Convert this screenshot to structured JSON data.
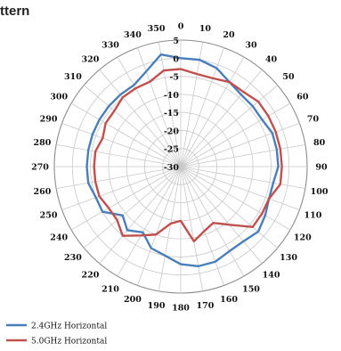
{
  "chart_data": {
    "type": "polar-line",
    "title": "ttern",
    "angle_unit": "degrees",
    "angle_ticks": [
      "0",
      "10",
      "20",
      "30",
      "40",
      "50",
      "60",
      "70",
      "80",
      "90",
      "100",
      "110",
      "120",
      "130",
      "140",
      "150",
      "160",
      "170",
      "180",
      "190",
      "200",
      "210",
      "220",
      "230",
      "240",
      "250",
      "260",
      "270",
      "280",
      "290",
      "300",
      "310",
      "320",
      "330",
      "340",
      "350"
    ],
    "radial_ticks": [
      "5",
      "0",
      "-5",
      "-10",
      "-15",
      "-20",
      "-25",
      "-30"
    ],
    "rlim": [
      -30,
      5
    ],
    "grid": true,
    "legend_position": "bottom-left",
    "series": [
      {
        "name": "2.4GHz Horizontal",
        "color": "#4a7ebb",
        "angles": [
          0,
          10,
          20,
          30,
          40,
          50,
          60,
          70,
          80,
          90,
          100,
          110,
          120,
          130,
          140,
          150,
          160,
          170,
          180,
          190,
          200,
          210,
          220,
          230,
          240,
          250,
          260,
          270,
          280,
          290,
          300,
          310,
          320,
          330,
          340,
          350
        ],
        "values": [
          0,
          0,
          -1,
          -3,
          -4,
          -4,
          -4,
          -3,
          -3,
          -3,
          -4,
          -4,
          -3,
          -2,
          -3,
          -3,
          -2,
          -2,
          -3,
          -5,
          -6,
          -9,
          -7,
          -9,
          -5,
          -5,
          -4,
          -4,
          -4,
          -4,
          -4,
          -4,
          -4,
          -4,
          -2,
          1.5
        ]
      },
      {
        "name": "5.0GHz Horizontal",
        "color": "#c0504d",
        "angles": [
          0,
          10,
          20,
          30,
          40,
          50,
          60,
          70,
          80,
          90,
          100,
          110,
          120,
          130,
          140,
          150,
          160,
          170,
          180,
          190,
          200,
          210,
          220,
          230,
          240,
          250,
          260,
          270,
          280,
          290,
          300,
          310,
          320,
          330,
          340,
          350
        ],
        "values": [
          -3,
          -4,
          -4,
          -3,
          -3,
          -2,
          -2,
          -2,
          -2,
          -2,
          -2,
          -4,
          -4,
          -4,
          -9,
          -12,
          -11,
          -9,
          -15,
          -14,
          -10,
          -8,
          -5,
          -7,
          -7,
          -6,
          -6,
          -6,
          -6,
          -7,
          -6,
          -6,
          -5,
          -5,
          -5,
          -3
        ]
      }
    ]
  }
}
